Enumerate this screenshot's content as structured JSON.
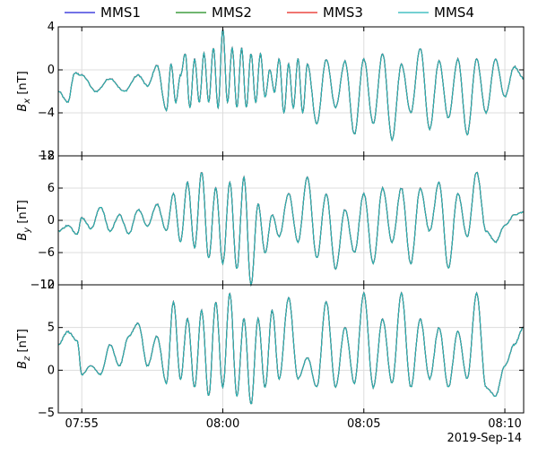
{
  "chart_data": {
    "type": "line",
    "title": "",
    "legend": {
      "placement": "top",
      "entries": [
        {
          "name": "MMS1",
          "color": "#1f1fd6"
        },
        {
          "name": "MMS2",
          "color": "#1a8a1a"
        },
        {
          "name": "MMS3",
          "color": "#e8231c"
        },
        {
          "name": "MMS4",
          "color": "#21b5b8"
        }
      ]
    },
    "x_axis": {
      "type": "time",
      "range": [
        "07:54:10",
        "08:10:40"
      ],
      "ticks": [
        {
          "t": "07:55:00",
          "label": "07:55"
        },
        {
          "t": "08:00:00",
          "label": "08:00"
        },
        {
          "t": "08:05:00",
          "label": "08:05"
        },
        {
          "t": "08:10:00",
          "label": "08:10"
        }
      ],
      "date_label": "2019-Sep-14"
    },
    "grid": true,
    "panels": [
      {
        "id": "bx",
        "ylabel_main": "B",
        "ylabel_sub": "x",
        "ylabel_unit": " [nT]",
        "ylim": [
          -8,
          4
        ],
        "yticks": [
          {
            "v": 4,
            "label": "4"
          },
          {
            "v": 0,
            "label": "0"
          },
          {
            "v": -4,
            "label": "−4"
          },
          {
            "v": -8,
            "label": "−8"
          }
        ],
        "series_key_times": [
          "07:54:10",
          "07:54:30",
          "07:54:45",
          "07:55:00",
          "07:55:30",
          "07:56:00",
          "07:56:30",
          "07:57:00",
          "07:57:20",
          "07:57:40",
          "07:58:00",
          "07:58:10",
          "07:58:20",
          "07:58:30",
          "07:58:40",
          "07:58:50",
          "07:59:00",
          "07:59:10",
          "07:59:20",
          "07:59:30",
          "07:59:40",
          "07:59:50",
          "08:00:00",
          "08:00:10",
          "08:00:20",
          "08:00:30",
          "08:00:40",
          "08:00:50",
          "08:01:00",
          "08:01:10",
          "08:01:20",
          "08:01:30",
          "08:01:40",
          "08:01:50",
          "08:02:00",
          "08:02:10",
          "08:02:20",
          "08:02:30",
          "08:02:40",
          "08:02:50",
          "08:03:00",
          "08:03:20",
          "08:03:40",
          "08:04:00",
          "08:04:20",
          "08:04:40",
          "08:05:00",
          "08:05:20",
          "08:05:40",
          "08:06:00",
          "08:06:20",
          "08:06:40",
          "08:07:00",
          "08:07:20",
          "08:07:40",
          "08:08:00",
          "08:08:20",
          "08:08:40",
          "08:09:00",
          "08:09:20",
          "08:09:40",
          "08:10:00",
          "08:10:20",
          "08:10:40"
        ],
        "series_key_values": [
          -2.0,
          -3.0,
          -0.3,
          -0.5,
          -2.0,
          -0.8,
          -2.0,
          -0.5,
          -1.5,
          0.4,
          -3.8,
          0.5,
          -3.0,
          -0.5,
          1.5,
          -3.5,
          1.0,
          -3.0,
          1.5,
          -3.0,
          2.0,
          -3.5,
          3.8,
          -3.0,
          2.0,
          -3.5,
          2.0,
          -3.5,
          1.5,
          -3.0,
          1.5,
          -2.5,
          0.0,
          -2.0,
          1.0,
          -4.0,
          0.5,
          -3.5,
          1.0,
          -4.0,
          0.5,
          -5.0,
          1.0,
          -3.5,
          0.8,
          -6.0,
          1.0,
          -5.0,
          1.5,
          -6.5,
          0.5,
          -4.0,
          2.0,
          -5.5,
          0.8,
          -4.5,
          1.0,
          -6.0,
          1.0,
          -4.0,
          1.0,
          -2.5,
          0.3,
          -0.8
        ]
      },
      {
        "id": "by",
        "ylabel_main": "B",
        "ylabel_sub": "y",
        "ylabel_unit": " [nT]",
        "ylim": [
          -12,
          12
        ],
        "yticks": [
          {
            "v": 12,
            "label": "12"
          },
          {
            "v": 6,
            "label": "6"
          },
          {
            "v": 0,
            "label": "0"
          },
          {
            "v": -6,
            "label": "−6"
          },
          {
            "v": -12,
            "label": "−12"
          }
        ],
        "series_key_times": [
          "07:54:10",
          "07:54:30",
          "07:54:50",
          "07:55:00",
          "07:55:20",
          "07:55:40",
          "07:56:00",
          "07:56:20",
          "07:56:40",
          "07:57:00",
          "07:57:20",
          "07:57:40",
          "07:58:00",
          "07:58:15",
          "07:58:30",
          "07:58:45",
          "07:59:00",
          "07:59:15",
          "07:59:30",
          "07:59:45",
          "08:00:00",
          "08:00:15",
          "08:00:30",
          "08:00:45",
          "08:01:00",
          "08:01:15",
          "08:01:30",
          "08:01:45",
          "08:02:00",
          "08:02:20",
          "08:02:40",
          "08:03:00",
          "08:03:20",
          "08:03:40",
          "08:04:00",
          "08:04:20",
          "08:04:40",
          "08:05:00",
          "08:05:20",
          "08:05:40",
          "08:06:00",
          "08:06:20",
          "08:06:40",
          "08:07:00",
          "08:07:20",
          "08:07:40",
          "08:08:00",
          "08:08:20",
          "08:08:40",
          "08:09:00",
          "08:09:20",
          "08:09:40",
          "08:10:00",
          "08:10:20",
          "08:10:40"
        ],
        "series_key_values": [
          -2.0,
          -1.0,
          -2.5,
          0.5,
          -1.5,
          2.5,
          -2.0,
          1.0,
          -2.5,
          2.0,
          -1.0,
          3.0,
          -2.0,
          5.0,
          -4.0,
          7.0,
          -5.0,
          9.0,
          -7.0,
          6.0,
          -8.0,
          7.0,
          -9.0,
          8.0,
          -12.0,
          3.0,
          -6.0,
          1.0,
          -3.0,
          5.0,
          -4.0,
          8.0,
          -7.0,
          5.0,
          -9.0,
          2.0,
          -6.0,
          5.0,
          -8.0,
          6.0,
          -4.0,
          6.0,
          -8.0,
          6.0,
          -2.0,
          7.0,
          -9.0,
          5.0,
          -3.0,
          9.0,
          -2.0,
          -4.0,
          -1.0,
          1.0,
          1.5
        ]
      },
      {
        "id": "bz",
        "ylabel_main": "B",
        "ylabel_sub": "z",
        "ylabel_unit": " [nT]",
        "ylim": [
          -5,
          10
        ],
        "yticks": [
          {
            "v": 10,
            "label": "10"
          },
          {
            "v": 5,
            "label": "5"
          },
          {
            "v": 0,
            "label": "0"
          },
          {
            "v": -5,
            "label": "−5"
          }
        ],
        "series_key_times": [
          "07:54:10",
          "07:54:30",
          "07:54:50",
          "07:55:00",
          "07:55:20",
          "07:55:40",
          "07:56:00",
          "07:56:20",
          "07:56:40",
          "07:57:00",
          "07:57:20",
          "07:57:40",
          "07:58:00",
          "07:58:15",
          "07:58:30",
          "07:58:45",
          "07:59:00",
          "07:59:15",
          "07:59:30",
          "07:59:45",
          "08:00:00",
          "08:00:15",
          "08:00:30",
          "08:00:45",
          "08:01:00",
          "08:01:15",
          "08:01:30",
          "08:01:45",
          "08:02:00",
          "08:02:20",
          "08:02:40",
          "08:03:00",
          "08:03:20",
          "08:03:40",
          "08:04:00",
          "08:04:20",
          "08:04:40",
          "08:05:00",
          "08:05:20",
          "08:05:40",
          "08:06:00",
          "08:06:20",
          "08:06:40",
          "08:07:00",
          "08:07:20",
          "08:07:40",
          "08:08:00",
          "08:08:20",
          "08:08:40",
          "08:09:00",
          "08:09:20",
          "08:09:40",
          "08:10:00",
          "08:10:20",
          "08:10:40"
        ],
        "series_key_values": [
          3.0,
          4.5,
          3.5,
          -0.5,
          0.5,
          -0.5,
          3.0,
          0.5,
          4.0,
          5.5,
          0.5,
          4.0,
          -1.5,
          8.0,
          -1.0,
          6.0,
          -2.0,
          7.0,
          -3.0,
          8.0,
          -2.0,
          9.0,
          -3.0,
          6.0,
          -4.0,
          6.0,
          -2.0,
          7.0,
          -1.0,
          8.5,
          -1.0,
          1.5,
          -2.0,
          8.0,
          -2.0,
          5.0,
          -1.5,
          9.0,
          -2.0,
          6.0,
          -1.5,
          9.0,
          -2.0,
          6.0,
          -1.0,
          5.0,
          -2.0,
          4.5,
          -1.0,
          9.0,
          -2.0,
          -3.0,
          0.5,
          3.0,
          5.0
        ]
      }
    ]
  }
}
